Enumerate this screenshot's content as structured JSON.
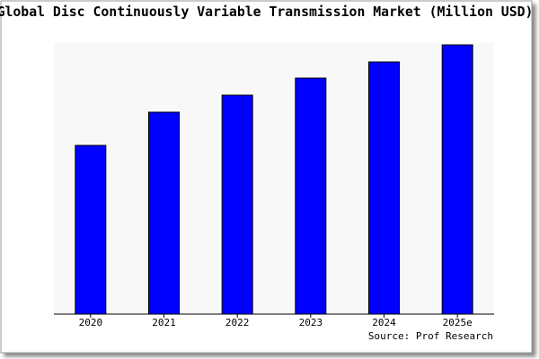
{
  "chart_data": {
    "type": "bar",
    "title": "Global Disc Continuously Variable Transmission Market (Million USD)",
    "source": "Source: Prof Research",
    "categories": [
      "2020",
      "2021",
      "2022",
      "2023",
      "2024",
      "2025e"
    ],
    "values": [
      188,
      225,
      244,
      263,
      281,
      300
    ],
    "color": "#0000ff",
    "ylim": [
      0,
      300
    ]
  }
}
